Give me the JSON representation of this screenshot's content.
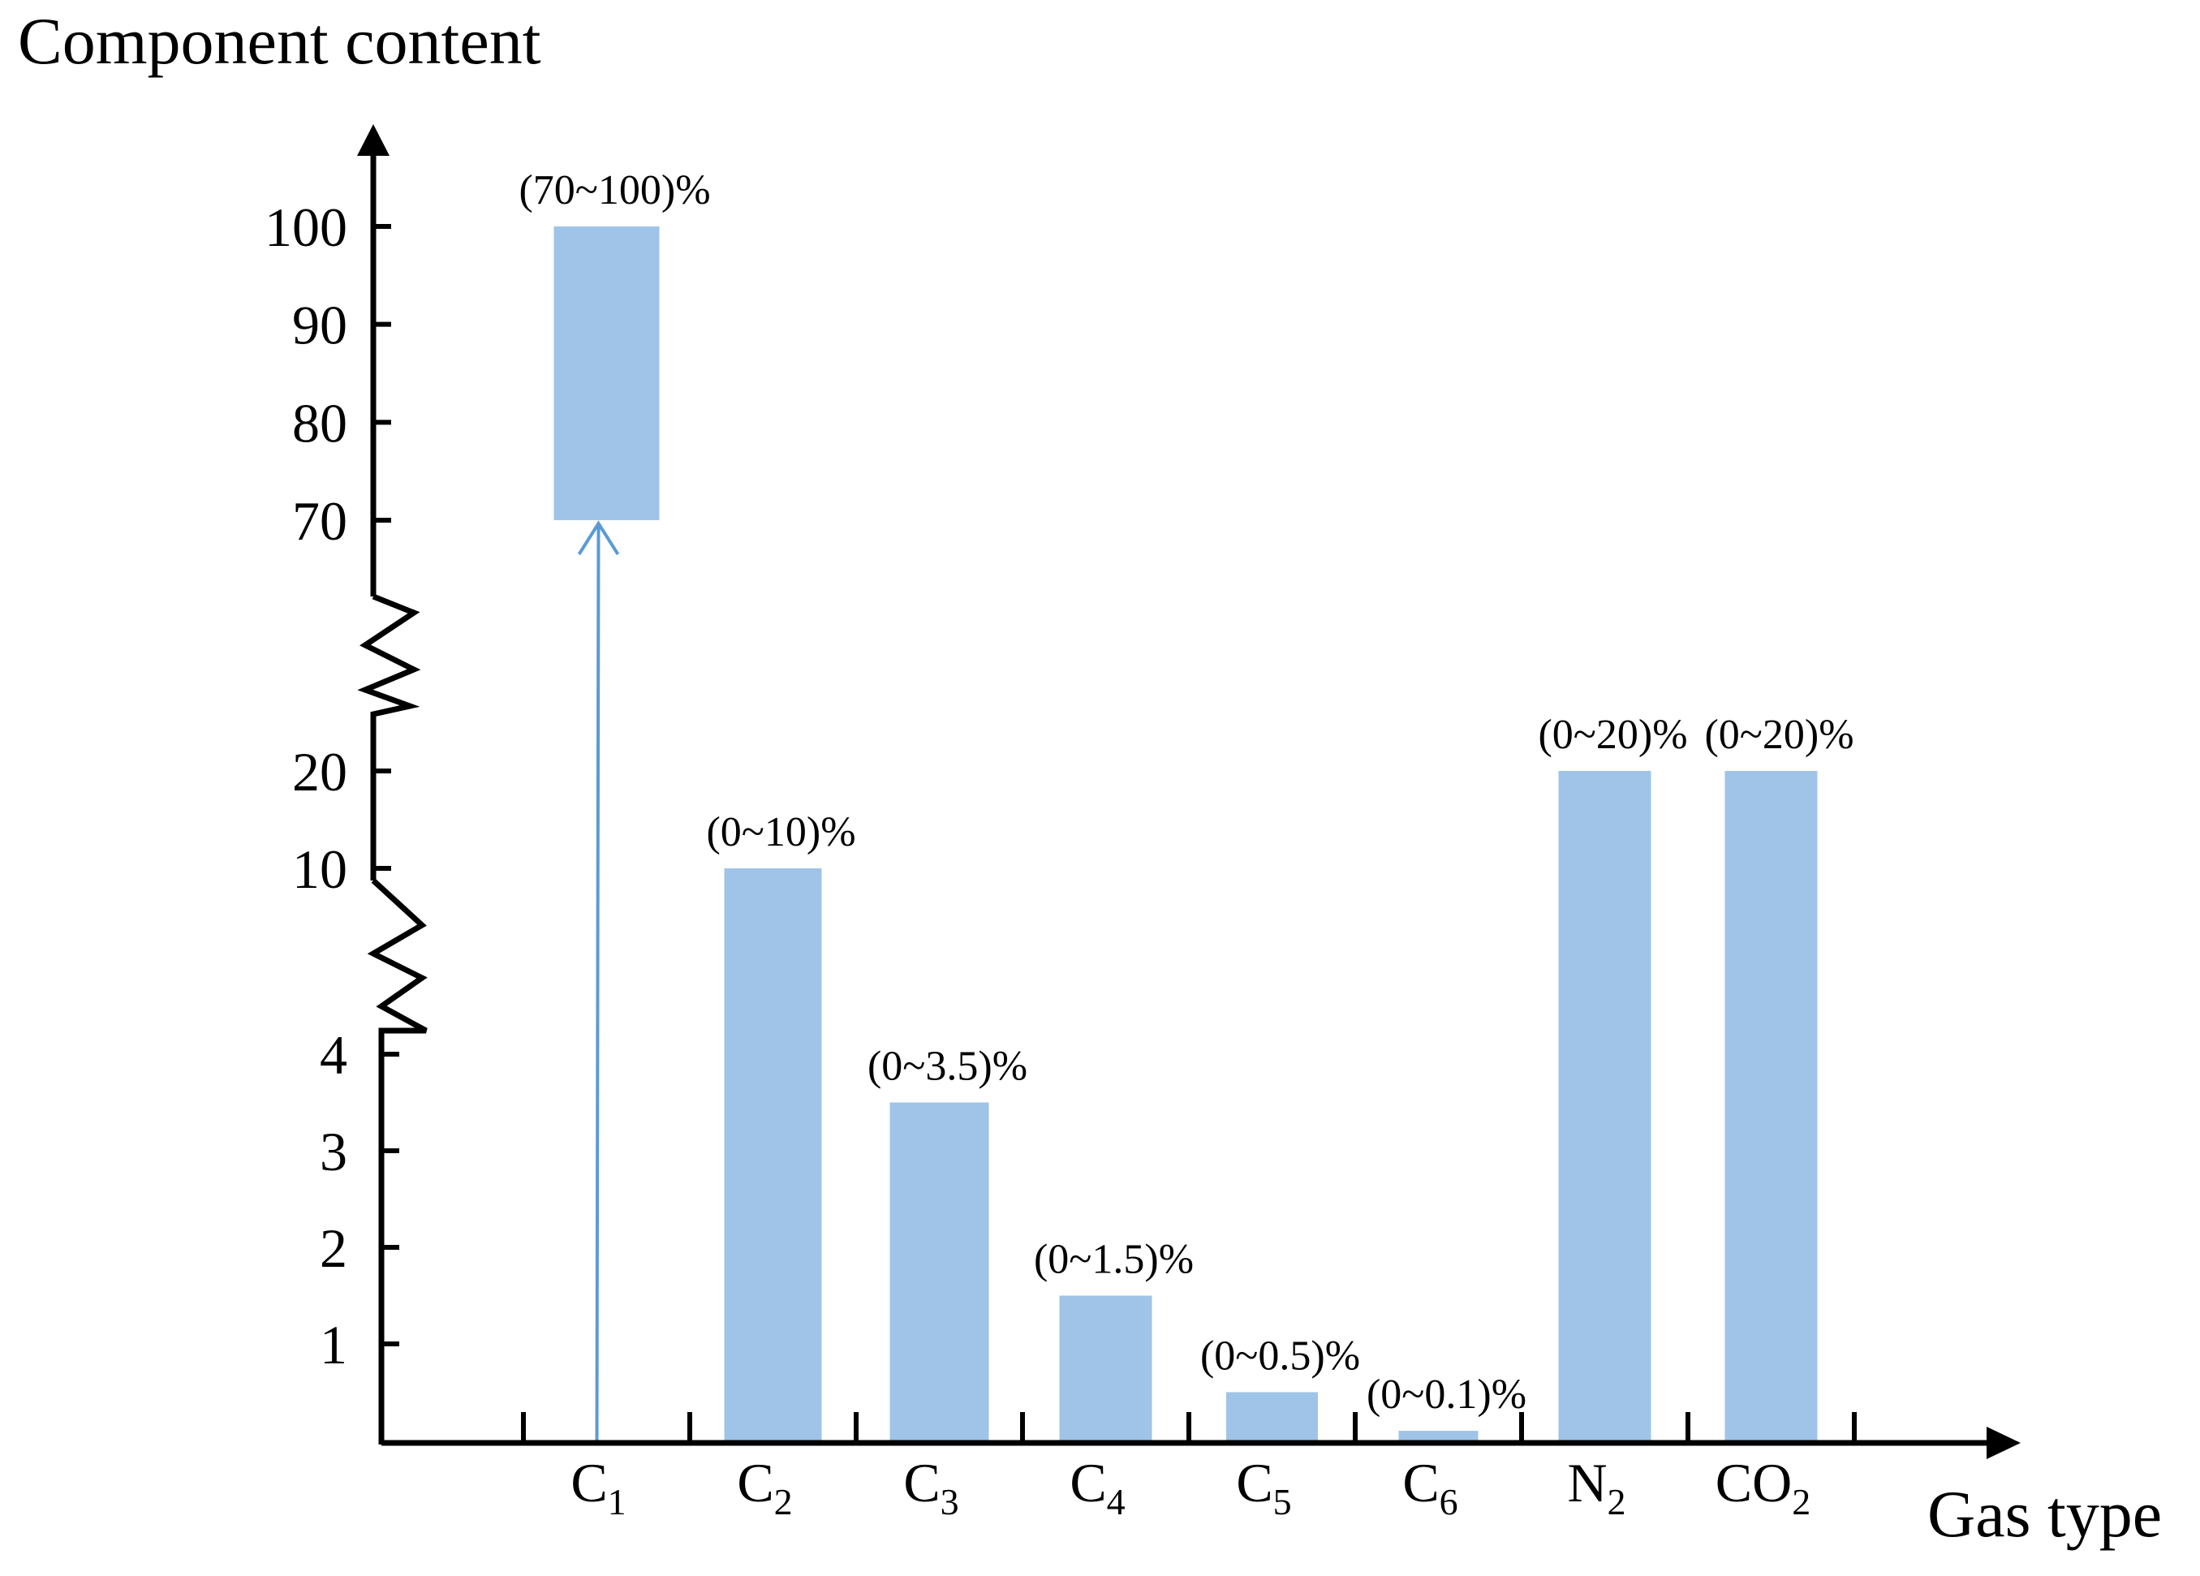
{
  "chart_data": {
    "type": "bar",
    "title": "",
    "ylabel": "Component content",
    "xlabel": "Gas type",
    "y_axis_break": true,
    "yticks": [
      "100",
      "90",
      "80",
      "70",
      "20",
      "10",
      "4",
      "3",
      "2",
      "1"
    ],
    "categories": [
      {
        "base": "C",
        "sub": "1"
      },
      {
        "base": "C",
        "sub": "2"
      },
      {
        "base": "C",
        "sub": "3"
      },
      {
        "base": "C",
        "sub": "4"
      },
      {
        "base": "C",
        "sub": "5"
      },
      {
        "base": "C",
        "sub": "6"
      },
      {
        "base": "N",
        "sub": "2"
      },
      {
        "base": "CO",
        "sub": "2"
      }
    ],
    "ranges": [
      {
        "low": 70,
        "high": 100,
        "label": "(70~100)%"
      },
      {
        "low": 0,
        "high": 10,
        "label": "(0~10)%"
      },
      {
        "low": 0,
        "high": 3.5,
        "label": "(0~3.5)%"
      },
      {
        "low": 0,
        "high": 1.5,
        "label": "(0~1.5)%"
      },
      {
        "low": 0,
        "high": 0.5,
        "label": "(0~0.5)%"
      },
      {
        "low": 0,
        "high": 0.1,
        "label": "(0~0.1)%"
      },
      {
        "low": 0,
        "high": 20,
        "label": "(0~20)%"
      },
      {
        "low": 0,
        "high": 20,
        "label": "(0~20)%"
      }
    ],
    "legend": "none",
    "grid": false
  },
  "colors": {
    "bar": "#9fc4e7",
    "arrow": "#5b9bd5",
    "axis": "#000000"
  }
}
